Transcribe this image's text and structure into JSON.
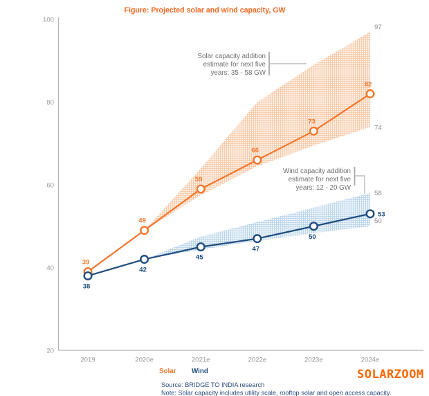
{
  "title": {
    "text": "Figure: Projected solar and wind capacity, GW",
    "color": "#f26822"
  },
  "watermark": {
    "text": "SOLARZOOM",
    "color": "#ff6600"
  },
  "legend": {
    "items": [
      {
        "label": "Solar",
        "color": "#f2752b"
      },
      {
        "label": "Wind",
        "color": "#1f4c7e"
      }
    ]
  },
  "footer": {
    "source": "Source: BRIDGE TO INDIA research",
    "note": "Note: Solar capacity includes utility scale, rooftop solar and open access capacity.",
    "color": "#28497b"
  },
  "annotations": {
    "solar": {
      "lines": [
        "Solar capacity addition",
        "estimate for next five",
        "years: 35 - 58 GW"
      ]
    },
    "wind": {
      "lines": [
        "Wind capacity addition",
        "estimate for next five",
        "years: 12 - 20 GW"
      ]
    }
  },
  "chart_data": {
    "type": "line",
    "title": "Figure: Projected solar and wind capacity, GW",
    "categories": [
      "2019",
      "2020e",
      "2021e",
      "2022e",
      "2023e",
      "2024e"
    ],
    "series": [
      {
        "name": "Solar",
        "color": "#f2752b",
        "values": [
          39,
          49,
          59,
          66,
          73,
          82
        ],
        "value_label_position": "above",
        "band": {
          "start_index": 1,
          "upper": [
            49,
            64,
            80,
            89,
            97
          ],
          "lower": [
            49,
            57.5,
            64.5,
            69.5,
            74
          ],
          "upper_end_label": "97",
          "lower_end_label": "74",
          "estimate_range_gw": "35 - 58"
        }
      },
      {
        "name": "Wind",
        "color": "#1f4c7e",
        "values": [
          38,
          42,
          45,
          47,
          50,
          53
        ],
        "value_label_position": "below",
        "last_label_position": "right",
        "band": {
          "start_index": 1,
          "upper": [
            42,
            47.5,
            51,
            54.5,
            58
          ],
          "lower": [
            42,
            44.3,
            46.5,
            48.3,
            50
          ],
          "upper_end_label": "58",
          "lower_end_label": "50",
          "estimate_range_gw": "12 - 20"
        }
      }
    ],
    "xlabel": "",
    "ylabel": "",
    "ylim": [
      20,
      100
    ],
    "yticks": [
      20,
      40,
      60,
      80,
      100
    ],
    "grid": false,
    "legend_position": "bottom",
    "axis_color": "#b3b3b3",
    "tick_color": "#9a9a9a"
  }
}
